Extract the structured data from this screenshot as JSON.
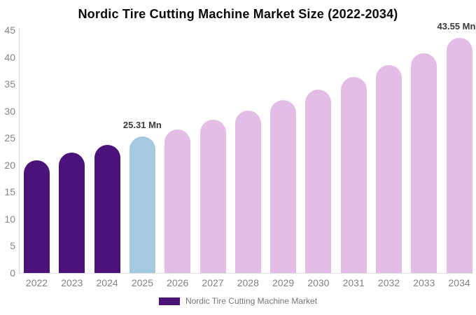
{
  "title": "Nordic Tire Cutting Machine Market Size (2022-2034)",
  "legend": {
    "label": "Nordic Tire Cutting Machine Market",
    "swatch_color": "#4B1279"
  },
  "colors": {
    "historical": "#4B1279",
    "base_year": "#A4CADF",
    "forecast": "#E4BDE6",
    "axis_line": "#D4D4D4",
    "tick_text": "#858585",
    "annotation_text": "#3A3A3A"
  },
  "chart_data": {
    "type": "bar",
    "title": "Nordic Tire Cutting Machine Market Size (2022-2034)",
    "series_name": "Nordic Tire Cutting Machine Market",
    "categories": [
      "2022",
      "2023",
      "2024",
      "2025",
      "2026",
      "2027",
      "2028",
      "2029",
      "2030",
      "2031",
      "2032",
      "2033",
      "2034"
    ],
    "values": [
      20.9,
      22.3,
      23.8,
      25.31,
      26.6,
      28.4,
      30.1,
      32.1,
      34.0,
      36.3,
      38.5,
      40.8,
      43.55
    ],
    "bar_roles": [
      "historical",
      "historical",
      "historical",
      "base_year",
      "forecast",
      "forecast",
      "forecast",
      "forecast",
      "forecast",
      "forecast",
      "forecast",
      "forecast",
      "forecast"
    ],
    "annotations": [
      {
        "category": "2025",
        "text": "25.31 Mn"
      },
      {
        "category": "2034",
        "text": "43.55 Mn"
      }
    ],
    "yticks": [
      0,
      5,
      10,
      15,
      20,
      25,
      30,
      35,
      40,
      45
    ],
    "ylim": [
      0,
      45
    ],
    "xlabel": "",
    "ylabel": "",
    "grid": false,
    "legend_position": "bottom"
  }
}
